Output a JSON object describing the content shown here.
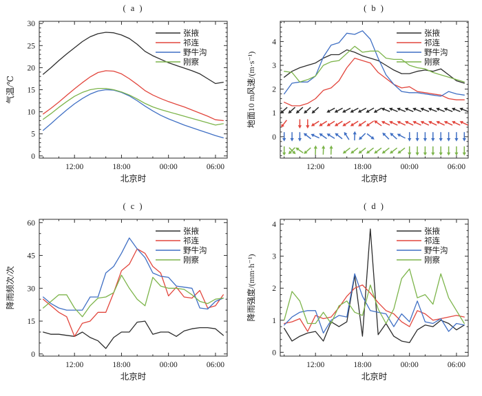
{
  "figure": {
    "x_axis_label": "北京时",
    "hours": [
      8,
      9,
      10,
      11,
      12,
      13,
      14,
      15,
      16,
      17,
      18,
      19,
      20,
      21,
      22,
      23,
      24,
      25,
      26,
      27,
      28,
      29,
      30,
      31
    ],
    "x_domain": [
      7.5,
      31.5
    ],
    "x_major_hours": [
      12,
      18,
      24,
      30
    ],
    "x_tick_labels": [
      "12:00",
      "18:00",
      "00:00",
      "06:00"
    ],
    "x_minor_hours": [
      8,
      10,
      14,
      16,
      20,
      22,
      26,
      28
    ],
    "stations": [
      {
        "name": "张掖",
        "color": "#2b2b2b"
      },
      {
        "name": "祁连",
        "color": "#e2453c"
      },
      {
        "name": "野牛沟",
        "color": "#3f6fc4"
      },
      {
        "name": "刚察",
        "color": "#7cb44a"
      }
    ]
  },
  "chart_data": [
    {
      "id": "a",
      "type": "line",
      "title": "( a )",
      "xlabel": "北京时",
      "ylabel": "气温/℃",
      "ylim": [
        -0.5,
        30.5
      ],
      "yticks": [
        0,
        5,
        10,
        15,
        20,
        25,
        30
      ],
      "yminor": 1,
      "legend_position": "top-right",
      "grid": false,
      "series": [
        {
          "name": "张掖",
          "values": [
            18.5,
            20.0,
            21.6,
            23.1,
            24.5,
            25.9,
            27.0,
            27.7,
            28.0,
            27.9,
            27.4,
            26.6,
            25.3,
            23.7,
            22.7,
            21.9,
            21.1,
            20.5,
            19.9,
            19.3,
            18.6,
            17.5,
            16.4,
            16.7
          ]
        },
        {
          "name": "祁连",
          "values": [
            9.5,
            10.8,
            12.2,
            13.7,
            15.2,
            16.6,
            17.9,
            18.9,
            19.3,
            19.2,
            18.6,
            17.5,
            16.2,
            14.8,
            13.8,
            13.0,
            12.3,
            11.7,
            11.1,
            10.4,
            9.7,
            9.0,
            8.2,
            8.0
          ]
        },
        {
          "name": "野牛沟",
          "values": [
            5.8,
            7.3,
            8.9,
            10.4,
            11.8,
            13.0,
            14.0,
            14.7,
            15.0,
            14.9,
            14.4,
            13.6,
            12.5,
            11.3,
            10.2,
            9.2,
            8.4,
            7.7,
            7.0,
            6.4,
            5.8,
            5.2,
            4.6,
            4.1
          ]
        },
        {
          "name": "刚察",
          "values": [
            8.3,
            9.6,
            11.0,
            12.3,
            13.5,
            14.4,
            15.0,
            15.3,
            15.3,
            15.0,
            14.5,
            13.8,
            12.9,
            11.9,
            11.1,
            10.5,
            10.0,
            9.5,
            9.0,
            8.5,
            8.0,
            7.5,
            7.0,
            7.3
          ]
        }
      ]
    },
    {
      "id": "b",
      "type": "line",
      "title": "( b )",
      "xlabel": "北京时",
      "ylabel": "地面10 m风速/(m·s⁻¹)",
      "ylim": [
        -0.9,
        4.85
      ],
      "yticks": [
        0,
        1,
        2,
        3,
        4
      ],
      "yminor": 0.2,
      "legend_position": "top-right",
      "grid": false,
      "series": [
        {
          "name": "张掖",
          "values": [
            2.5,
            2.75,
            2.9,
            3.0,
            3.1,
            3.3,
            3.45,
            3.45,
            3.65,
            3.55,
            3.4,
            3.3,
            3.2,
            3.0,
            2.8,
            2.65,
            2.65,
            2.75,
            2.8,
            2.75,
            2.85,
            2.6,
            2.35,
            2.25
          ]
        },
        {
          "name": "祁连",
          "values": [
            1.45,
            1.3,
            1.3,
            1.4,
            1.6,
            1.95,
            2.05,
            2.35,
            2.9,
            3.3,
            3.2,
            3.1,
            2.7,
            2.45,
            2.2,
            2.05,
            2.1,
            1.9,
            1.85,
            1.8,
            1.75,
            1.6,
            1.55,
            1.55
          ]
        },
        {
          "name": "野牛沟",
          "values": [
            1.8,
            2.25,
            2.3,
            2.3,
            2.55,
            3.35,
            3.85,
            3.95,
            4.35,
            4.3,
            4.45,
            4.1,
            3.3,
            2.6,
            2.2,
            1.9,
            1.85,
            1.85,
            1.8,
            1.75,
            1.7,
            1.9,
            1.8,
            1.75
          ]
        },
        {
          "name": "刚察",
          "values": [
            2.75,
            2.7,
            2.3,
            2.4,
            2.55,
            3.0,
            3.15,
            3.2,
            3.5,
            3.8,
            3.55,
            3.6,
            3.6,
            3.3,
            3.25,
            3.25,
            3.0,
            2.9,
            2.85,
            2.7,
            2.6,
            2.5,
            2.4,
            2.3
          ]
        }
      ],
      "wind_arrows": {
        "note": "hourly 10 m wind direction vectors; angle = degrees clockwise from east(right), null = no arrow, a+b = crossed pair",
        "rows": [
          {
            "name": "张掖",
            "y": 1.12,
            "angles": [
              138,
              138,
              138,
              138,
              138,
              null,
              152,
              152,
              152,
              152,
              152,
              150,
              150,
              202,
              202,
              202,
              202,
              202,
              202,
              202,
              202,
              202,
              202,
              202
            ]
          },
          {
            "name": "祁连",
            "y": 0.56,
            "angles": [
              128,
              null,
              90,
              90,
              148,
              148,
              148,
              148,
              148,
              148,
              146,
              145,
              215,
              205,
              205,
              205,
              205,
              205,
              205,
              205,
              205,
              205,
              205,
              205
            ]
          },
          {
            "name": "野牛沟",
            "y": 0.02,
            "angles": [
              90,
              90,
              90,
              218,
              205,
              215,
              212,
              218,
              238,
              272,
              135,
              38,
              null,
              225,
              222,
              208,
              90,
              90,
              90,
              90,
              90,
              90,
              90,
              90
            ]
          },
          {
            "name": "刚察",
            "y": -0.58,
            "angles": [
              90,
              "45+135",
              215,
              138,
              272,
              272,
              272,
              null,
              142,
              142,
              142,
              142,
              142,
              142,
              142,
              142,
              90,
              90,
              90,
              90,
              90,
              90,
              90,
              90
            ]
          }
        ]
      }
    },
    {
      "id": "c",
      "type": "line",
      "title": "( c )",
      "xlabel": "北京时",
      "ylabel": "降雨频次/次",
      "ylim": [
        -1,
        61.5
      ],
      "yticks": [
        0,
        15,
        30,
        45,
        60
      ],
      "yminor": 5,
      "legend_position": "top-right",
      "grid": false,
      "series": [
        {
          "name": "张掖",
          "values": [
            10,
            9,
            9,
            8.5,
            8,
            10,
            7.5,
            6,
            2.5,
            7.5,
            10,
            10,
            14.5,
            15,
            9,
            10,
            10,
            8,
            10.5,
            11.5,
            12,
            12,
            11.5,
            8.5
          ]
        },
        {
          "name": "祁连",
          "values": [
            25,
            22,
            19,
            17,
            8,
            14,
            15,
            19,
            19,
            28,
            38,
            41,
            48,
            46,
            40,
            37,
            26.5,
            30.5,
            26,
            25.5,
            29,
            21,
            22,
            27
          ]
        },
        {
          "name": "野牛沟",
          "values": [
            26,
            23,
            21,
            20,
            20,
            20,
            26,
            26,
            37,
            40,
            46,
            53,
            48,
            44,
            37,
            35.5,
            35,
            31,
            30.5,
            30,
            21,
            20.5,
            24,
            25.5
          ]
        },
        {
          "name": "刚察",
          "values": [
            21,
            24,
            27,
            27,
            21,
            17,
            22,
            25.5,
            26,
            28,
            36,
            30,
            25,
            22,
            35,
            31,
            30,
            30,
            29.5,
            27,
            24,
            23,
            25,
            25.5
          ]
        }
      ]
    },
    {
      "id": "d",
      "type": "line",
      "title": "( d )",
      "xlabel": "北京时",
      "ylabel": "降雨强度/(mm·h⁻¹)",
      "ylim": [
        -0.12,
        4.15
      ],
      "yticks": [
        0,
        1,
        2,
        3,
        4
      ],
      "yminor": 0.2,
      "legend_position": "top-right",
      "grid": false,
      "series": [
        {
          "name": "张掖",
          "values": [
            0.75,
            0.35,
            0.5,
            0.6,
            0.65,
            0.35,
            0.95,
            0.8,
            0.95,
            2.4,
            0.5,
            3.85,
            0.55,
            0.9,
            0.5,
            0.35,
            0.3,
            0.7,
            0.85,
            0.8,
            1.0,
            0.9,
            0.7,
            0.85
          ]
        },
        {
          "name": "祁连",
          "values": [
            0.9,
            0.95,
            1.05,
            0.65,
            1.15,
            1.05,
            1.1,
            1.4,
            1.75,
            2.0,
            2.1,
            1.85,
            1.55,
            1.3,
            1.2,
            0.95,
            0.8,
            1.3,
            1.2,
            1.0,
            1.05,
            1.1,
            1.15,
            1.1
          ]
        },
        {
          "name": "野牛沟",
          "values": [
            0.85,
            1.1,
            1.25,
            1.3,
            1.3,
            0.6,
            1.0,
            1.15,
            1.1,
            2.45,
            1.75,
            1.3,
            1.25,
            1.2,
            0.8,
            1.2,
            0.95,
            1.6,
            0.95,
            0.9,
            1.05,
            0.65,
            0.9,
            0.85
          ]
        },
        {
          "name": "刚察",
          "values": [
            1.0,
            1.9,
            1.6,
            0.9,
            0.9,
            1.25,
            0.9,
            1.45,
            1.6,
            1.25,
            1.15,
            2.1,
            1.35,
            0.9,
            1.35,
            2.3,
            2.6,
            1.7,
            1.8,
            1.5,
            2.45,
            1.7,
            1.3,
            0.9
          ]
        }
      ]
    }
  ]
}
